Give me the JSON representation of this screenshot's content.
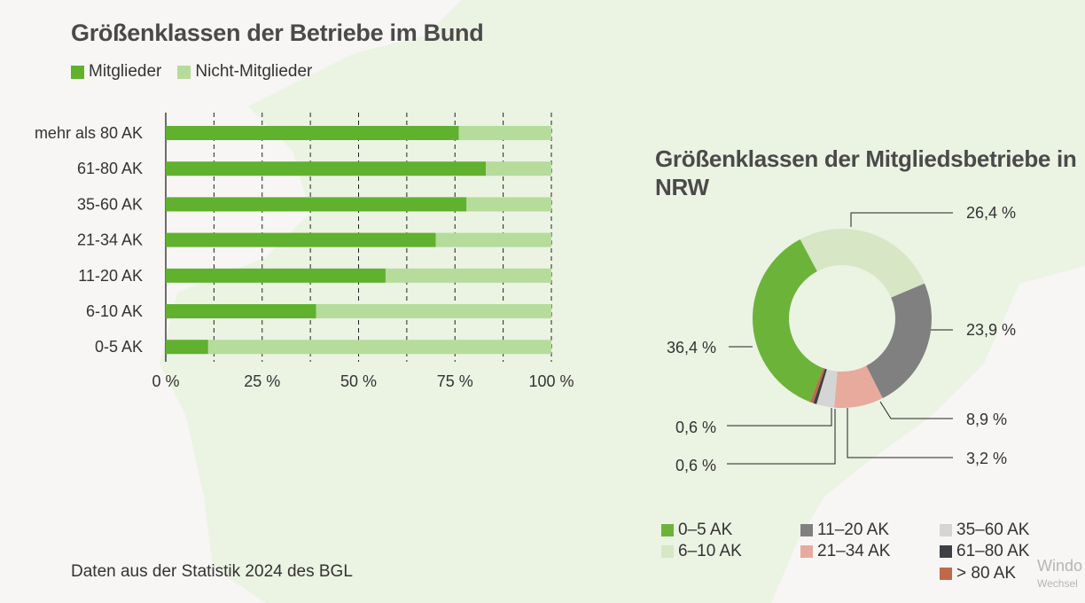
{
  "colors": {
    "background": "#f7f6f4",
    "map_fill": "#ebf3e3",
    "mitglieder": "#5fb12e",
    "nicht_mitglieder": "#b5dc9b"
  },
  "source_note": "Daten aus der Statistik 2024 des BGL",
  "watermark": {
    "line1": "Windo",
    "line2": "Wechsel"
  },
  "chart_data": [
    {
      "type": "bar",
      "orientation": "horizontal",
      "stacked": true,
      "title": "Größenklassen der Betriebe im Bund",
      "legend": [
        "Mitglieder",
        "Nicht-Mitglieder"
      ],
      "legend_position": "top-left",
      "categories": [
        "mehr als 80 AK",
        "61-80 AK",
        "35-60 AK",
        "21-34 AK",
        "11-20 AK",
        "6-10 AK",
        "0-5 AK"
      ],
      "series": [
        {
          "name": "Mitglieder",
          "color": "#5fb12e",
          "values": [
            76,
            83,
            78,
            70,
            57,
            39,
            11
          ]
        },
        {
          "name": "Nicht-Mitglieder",
          "color": "#b5dc9b",
          "values": [
            24,
            17,
            22,
            30,
            43,
            61,
            89
          ]
        }
      ],
      "xlim": [
        0,
        100
      ],
      "xticks": [
        0,
        25,
        50,
        75,
        100
      ],
      "xtick_labels": [
        "0 %",
        "25 %",
        "50 %",
        "75 %",
        "100 %"
      ],
      "grid": true
    },
    {
      "type": "pie",
      "donut": true,
      "title": "Größenklassen der Mitgliedsbetriebe in NRW",
      "slices": [
        {
          "name": "0–5 AK",
          "value": 36.4,
          "label": "36,4 %",
          "color": "#6cb33a"
        },
        {
          "name": "6–10 AK",
          "value": 26.4,
          "label": "26,4 %",
          "color": "#d7e6c4"
        },
        {
          "name": "11–20 AK",
          "value": 23.9,
          "label": "23,9 %",
          "color": "#808080"
        },
        {
          "name": "21–34 AK",
          "value": 8.9,
          "label": "8,9 %",
          "color": "#e8aa9c"
        },
        {
          "name": "35–60 AK",
          "value": 3.2,
          "label": "3,2 %",
          "color": "#d5d5d5"
        },
        {
          "name": "61–80 AK",
          "value": 0.6,
          "label": "0,6 %",
          "color": "#3d4044"
        },
        {
          "name": "> 80 AK",
          "value": 0.6,
          "label": "0,6 %",
          "color": "#c0694a"
        }
      ],
      "start_slice": "6–10 AK",
      "direction": "clockwise",
      "legend_position": "bottom"
    }
  ]
}
